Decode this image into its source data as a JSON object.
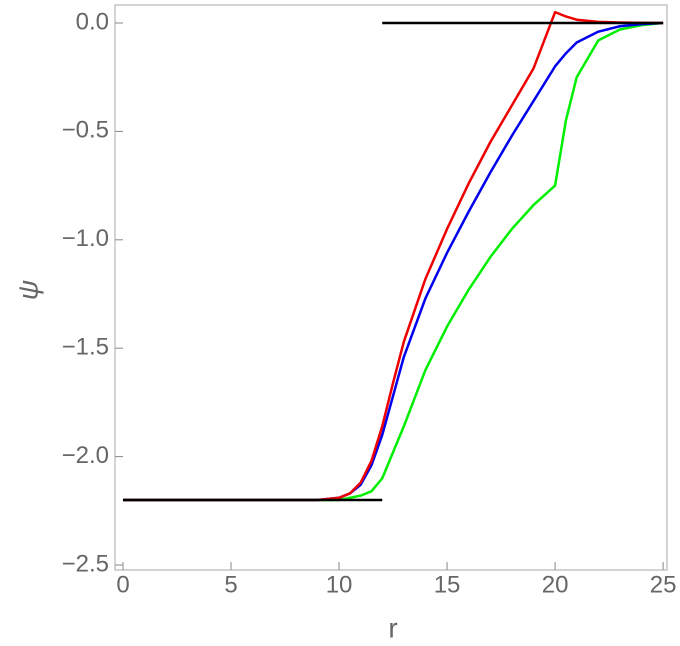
{
  "chart_data": {
    "type": "line",
    "xlabel": "r",
    "ylabel": "ψ",
    "xlim": [
      -0.37,
      25.18
    ],
    "ylim": [
      -2.523,
      0.083
    ],
    "xticks": [
      0,
      5,
      10,
      15,
      20,
      25
    ],
    "yticks": [
      {
        "value": 0,
        "label": "0.0"
      },
      {
        "value": -0.5,
        "label": "−0.5"
      },
      {
        "value": -1,
        "label": "−1.0"
      },
      {
        "value": -1.5,
        "label": "−1.5"
      },
      {
        "value": -2,
        "label": "−2.0"
      },
      {
        "value": -2.5,
        "label": "−2.5"
      }
    ],
    "grid": false,
    "x": [
      0,
      5,
      9,
      10,
      10.5,
      11,
      11.5,
      12,
      12.5,
      13,
      14,
      15,
      16,
      17,
      18,
      19,
      20,
      20.5,
      21,
      22,
      23,
      24,
      25
    ],
    "series": [
      {
        "color": "#00ee00",
        "values": [
          -2.2,
          -2.2,
          -2.2,
          -2.2,
          -2.19,
          -2.18,
          -2.16,
          -2.1,
          -1.98,
          -1.86,
          -1.6,
          -1.4,
          -1.23,
          -1.08,
          -0.95,
          -0.84,
          -0.75,
          -0.45,
          -0.25,
          -0.08,
          -0.03,
          -0.01,
          0
        ]
      },
      {
        "color": "#0000ee",
        "values": [
          -2.2,
          -2.2,
          -2.2,
          -2.19,
          -2.17,
          -2.13,
          -2.04,
          -1.9,
          -1.72,
          -1.54,
          -1.27,
          -1.06,
          -0.87,
          -0.69,
          -0.52,
          -0.36,
          -0.2,
          -0.14,
          -0.09,
          -0.04,
          -0.015,
          -0.005,
          0
        ]
      },
      {
        "color": "#ee0000",
        "values": [
          -2.2,
          -2.2,
          -2.2,
          -2.19,
          -2.17,
          -2.12,
          -2.02,
          -1.86,
          -1.66,
          -1.47,
          -1.18,
          -0.95,
          -0.74,
          -0.55,
          -0.38,
          -0.21,
          0.05,
          0.03,
          0.015,
          0.005,
          0.002,
          0.001,
          0
        ]
      },
      {
        "color": "#000000",
        "x": [
          0,
          12
        ],
        "values": [
          -2.2,
          -2.2
        ]
      },
      {
        "color": "#000000",
        "x": [
          12,
          25
        ],
        "values": [
          0,
          0
        ]
      }
    ]
  }
}
